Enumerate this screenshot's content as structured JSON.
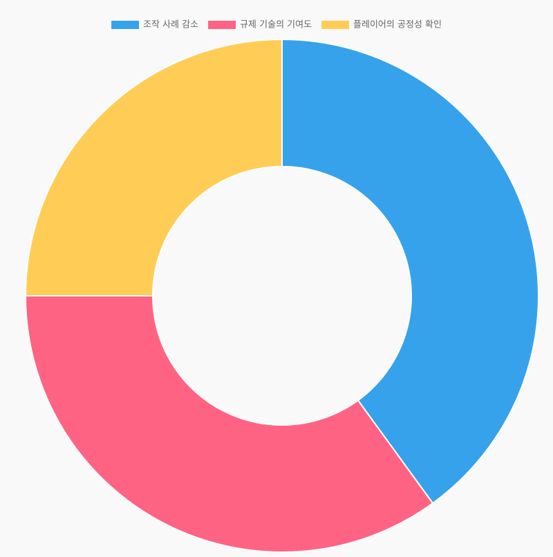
{
  "chart_data": {
    "type": "doughnut",
    "categories": [
      "조작 사례 감소",
      "규제 기술의 기여도",
      "플레이어의 공정성 확인"
    ],
    "values": [
      40,
      35,
      25
    ],
    "colors": [
      "#36a2eb",
      "#ff6384",
      "#ffcd56"
    ],
    "legend": "top"
  }
}
